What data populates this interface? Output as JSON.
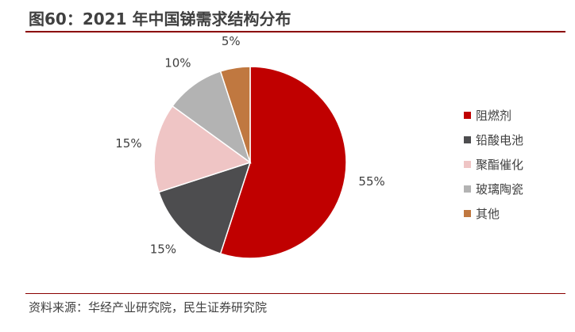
{
  "header": {
    "title": "图60：2021 年中国锑需求结构分布"
  },
  "footer": {
    "source": "资料来源：华经产业研究院，民生证券研究院"
  },
  "chart_data": {
    "type": "pie",
    "title": "图60：2021 年中国锑需求结构分布",
    "categories": [
      "阻燃剂",
      "铅酸电池",
      "聚酯催化",
      "玻璃陶瓷",
      "其他"
    ],
    "values": [
      55,
      15,
      15,
      10,
      5
    ],
    "labels": [
      "55%",
      "15%",
      "15%",
      "10%",
      "5%"
    ],
    "colors": [
      "#c00000",
      "#4d4d4f",
      "#efc5c5",
      "#b3b3b3",
      "#c07840"
    ],
    "legend_position": "right"
  }
}
